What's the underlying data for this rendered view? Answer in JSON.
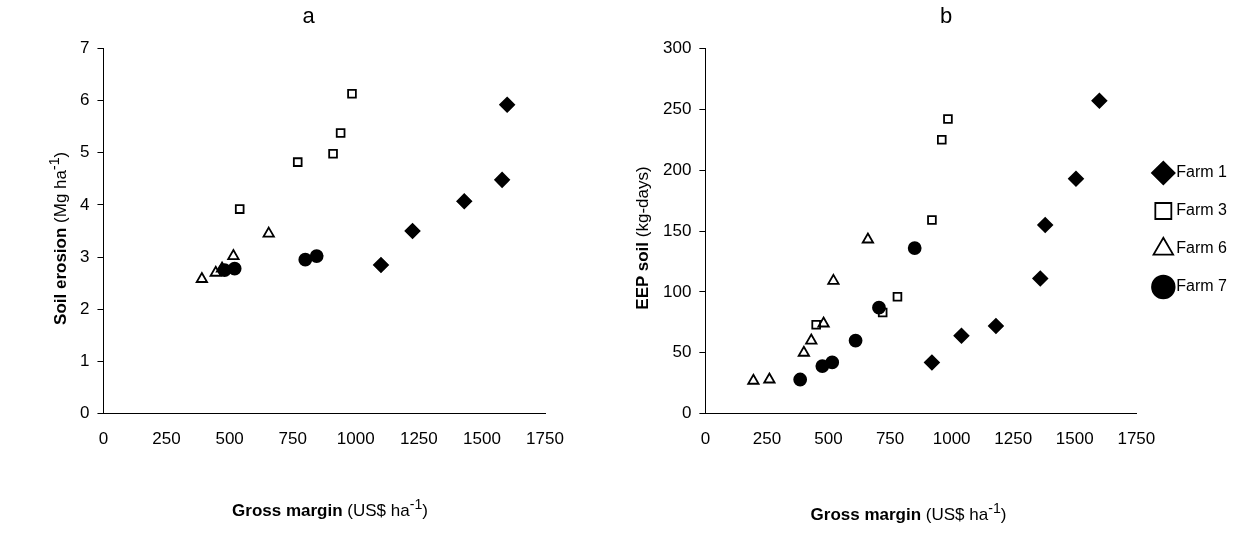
{
  "chart_data": [
    {
      "type": "scatter",
      "title": "a",
      "xlabel": "Gross margin (US$ ha$^{-1}$)",
      "ylabel": "Soil erosion (Mg ha$^{-1}$)",
      "xlim": [
        0,
        1750
      ],
      "xticks": [
        0,
        250,
        500,
        750,
        1000,
        1250,
        1500,
        1750
      ],
      "ylim": [
        0,
        7
      ],
      "yticks": [
        0,
        1,
        2,
        3,
        4,
        5,
        6,
        7
      ],
      "grid": false,
      "legend": false,
      "series": [
        {
          "color": "#000000",
          "marker": "diamond",
          "x": [
            1100,
            1225,
            1430,
            1580,
            1600
          ],
          "values": [
            2.85,
            3.5,
            4.07,
            4.48,
            5.92
          ]
        },
        {
          "color": "#000000",
          "marker": "square",
          "x": [
            540,
            770,
            910,
            940,
            985
          ],
          "values": [
            3.92,
            4.82,
            4.98,
            5.38,
            6.13
          ]
        },
        {
          "color": "#000000",
          "marker": "triangle",
          "x": [
            390,
            445,
            470,
            515,
            655
          ],
          "values": [
            2.58,
            2.7,
            2.78,
            3.02,
            3.45
          ]
        },
        {
          "color": "#000000",
          "marker": "circle",
          "x": [
            480,
            520,
            800,
            845
          ],
          "values": [
            2.75,
            2.78,
            2.95,
            3.02
          ]
        }
      ]
    },
    {
      "type": "scatter",
      "title": "b",
      "xlabel": "Gross margin (US$ ha$^{-1}$)",
      "ylabel": "EEP soil (kg-days)",
      "xlim": [
        0,
        1750
      ],
      "xticks": [
        0,
        250,
        500,
        750,
        1000,
        1250,
        1500,
        1750
      ],
      "ylim": [
        0,
        300
      ],
      "yticks": [
        0,
        50,
        100,
        150,
        200,
        250,
        300
      ],
      "grid": false,
      "legend": "right",
      "series": [
        {
          "name": "Farm 1",
          "color": "#000000",
          "marker": "diamond",
          "x": [
            920,
            1040,
            1180,
            1360,
            1380,
            1505,
            1600
          ],
          "values": [
            42,
            64,
            72,
            111,
            155,
            193,
            257
          ]
        },
        {
          "name": "Farm 3",
          "color": "#000000",
          "marker": "square",
          "x": [
            450,
            720,
            780,
            920,
            960,
            985
          ],
          "values": [
            73,
            83,
            96,
            159,
            225,
            242
          ]
        },
        {
          "name": "Farm 6",
          "color": "#000000",
          "marker": "triangle",
          "x": [
            195,
            260,
            400,
            430,
            480,
            520,
            660
          ],
          "values": [
            27,
            28,
            50,
            60,
            74,
            109,
            143
          ]
        },
        {
          "name": "Farm 7",
          "color": "#000000",
          "marker": "circle",
          "x": [
            385,
            475,
            515,
            610,
            705,
            850
          ],
          "values": [
            28,
            39,
            42,
            60,
            87,
            136
          ]
        }
      ]
    }
  ]
}
